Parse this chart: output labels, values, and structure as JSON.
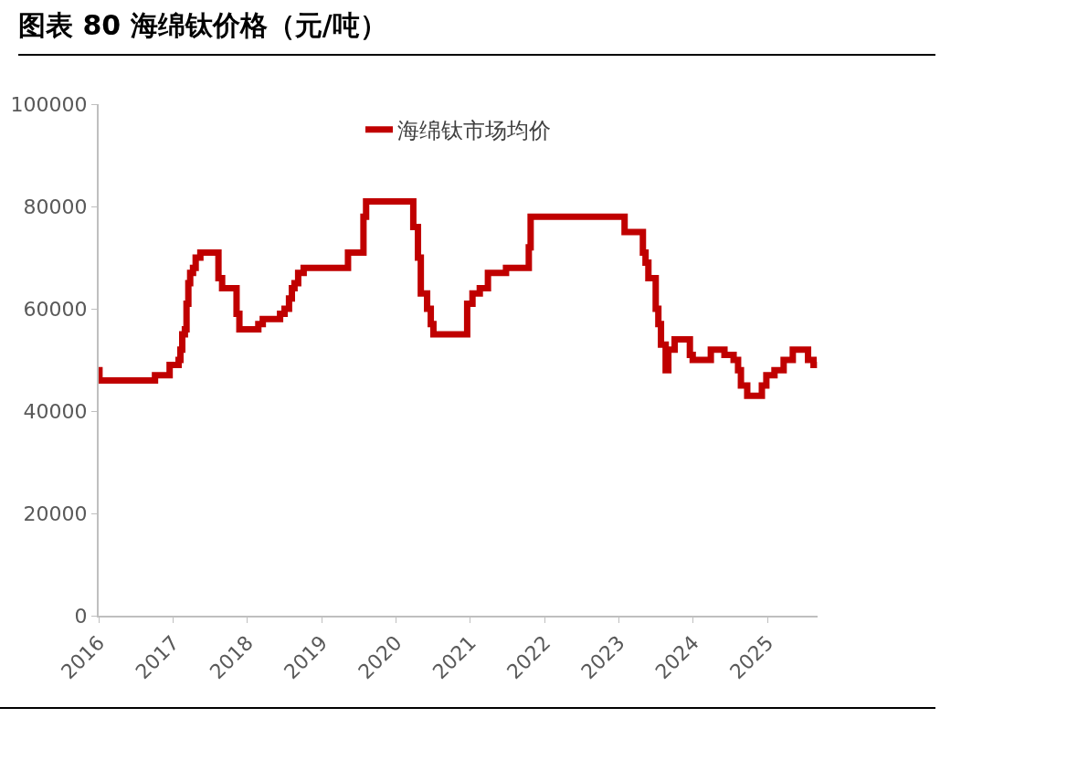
{
  "chart_data": {
    "type": "step",
    "title": "图表 80 海绵钛价格（元/吨）",
    "series": [
      {
        "name": "海绵钛市场均价",
        "color": "#c00000",
        "x": [
          "2016-01-01",
          "2016-01-05",
          "2016-10-04",
          "2016-12-15",
          "2017-01-28",
          "2017-02-06",
          "2017-02-15",
          "2017-02-28",
          "2017-03-08",
          "2017-03-17",
          "2017-03-26",
          "2017-04-09",
          "2017-04-22",
          "2017-05-15",
          "2017-08-12",
          "2017-08-30",
          "2017-11-09",
          "2017-11-23",
          "2018-02-24",
          "2018-03-18",
          "2018-06-11",
          "2018-07-03",
          "2018-07-25",
          "2018-08-08",
          "2018-08-21",
          "2018-09-08",
          "2018-10-05",
          "2019-05-11",
          "2019-07-26",
          "2019-08-08",
          "2020-03-27",
          "2020-04-19",
          "2020-05-03",
          "2020-06-03",
          "2020-06-21",
          "2020-07-04",
          "2020-12-17",
          "2021-01-12",
          "2021-02-17",
          "2021-03-29",
          "2021-06-26",
          "2021-10-16",
          "2021-10-25",
          "2023-01-30",
          "2023-04-30",
          "2023-05-13",
          "2023-05-27",
          "2023-07-02",
          "2023-07-15",
          "2023-07-28",
          "2023-08-20",
          "2023-09-02",
          "2023-10-03",
          "2023-12-17",
          "2023-12-31",
          "2024-03-29",
          "2024-06-04",
          "2024-07-19",
          "2024-08-10",
          "2024-08-24",
          "2024-09-24",
          "2024-12-05",
          "2024-12-27",
          "2025-02-05",
          "2025-03-22",
          "2025-05-06",
          "2025-07-20",
          "2025-08-16",
          "2025-09-02"
        ],
        "values": [
          48000,
          46000,
          47000,
          49000,
          50000,
          52000,
          55000,
          56000,
          61000,
          65000,
          67000,
          68000,
          70000,
          71000,
          66000,
          64000,
          59000,
          56000,
          57000,
          58000,
          59000,
          60000,
          62000,
          64000,
          65000,
          67000,
          68000,
          71000,
          78000,
          81000,
          76000,
          70000,
          63000,
          60000,
          57000,
          55000,
          61000,
          63000,
          64000,
          67000,
          68000,
          72000,
          78000,
          75000,
          71000,
          69000,
          66000,
          60000,
          57000,
          53000,
          48000,
          52000,
          54000,
          51000,
          50000,
          52000,
          51000,
          50000,
          48000,
          45000,
          43000,
          45000,
          47000,
          48000,
          50000,
          52000,
          50000,
          49000,
          49000
        ]
      }
    ],
    "xlim": [
      "2016-01-01",
      "2025-09-05"
    ],
    "xticks": [
      "2016",
      "2017",
      "2018",
      "2019",
      "2020",
      "2021",
      "2022",
      "2023",
      "2024",
      "2025"
    ],
    "ylim": [
      0,
      100000
    ],
    "yticks": [
      0,
      20000,
      40000,
      60000,
      80000,
      100000
    ],
    "grid": false,
    "legend": "top",
    "line_style": "solid",
    "marker": "none"
  }
}
